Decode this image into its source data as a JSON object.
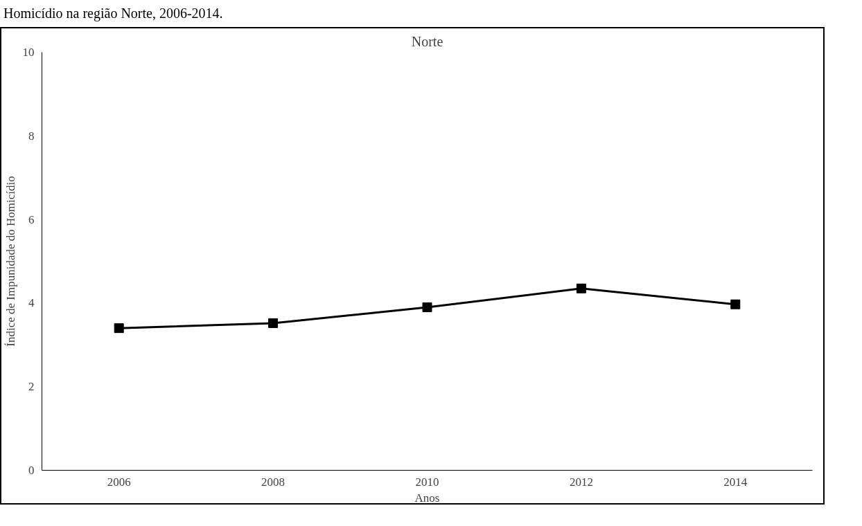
{
  "chart_data": {
    "type": "line",
    "title": "Norte",
    "xlabel": "Anos",
    "ylabel": "Índice de Impunidade do Homicídio",
    "annotations": [
      "Homicídio na região Norte, 2006-2014."
    ],
    "categories": [
      "2006",
      "2008",
      "2010",
      "2012",
      "2014"
    ],
    "series": [
      {
        "color": "#000000",
        "values": [
          3.4,
          3.52,
          3.9,
          4.35,
          3.97
        ]
      }
    ],
    "ylim": [
      0,
      10
    ],
    "yticks": [
      0,
      2,
      4,
      6,
      8,
      10
    ],
    "grid": false,
    "marker": "square",
    "line_style": "solid"
  }
}
